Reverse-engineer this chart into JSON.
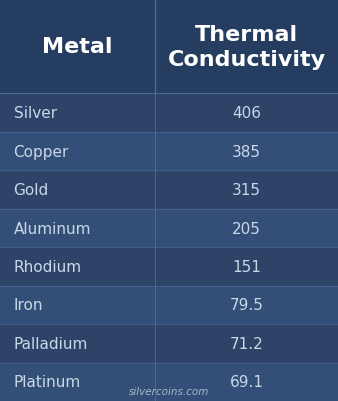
{
  "title_col1": "Metal",
  "title_col2": "Thermal\nConductivity",
  "rows": [
    [
      "Silver",
      "406"
    ],
    [
      "Copper",
      "385"
    ],
    [
      "Gold",
      "315"
    ],
    [
      "Aluminum",
      "205"
    ],
    [
      "Rhodium",
      "151"
    ],
    [
      "Iron",
      "79.5"
    ],
    [
      "Palladium",
      "71.2"
    ],
    [
      "Platinum",
      "69.1"
    ]
  ],
  "bg_color": "#2d4468",
  "header_bg": "#253d60",
  "row_bg_dark": "#2d4468",
  "row_bg_light": "#344f77",
  "header_text_color": "#ffffff",
  "row_text_color": "#c8d8e8",
  "divider_color": "#4a6899",
  "watermark": "silvercoins.com",
  "col_split": 0.46,
  "header_font_size": 16,
  "row_font_size": 11,
  "watermark_font_size": 7.5
}
